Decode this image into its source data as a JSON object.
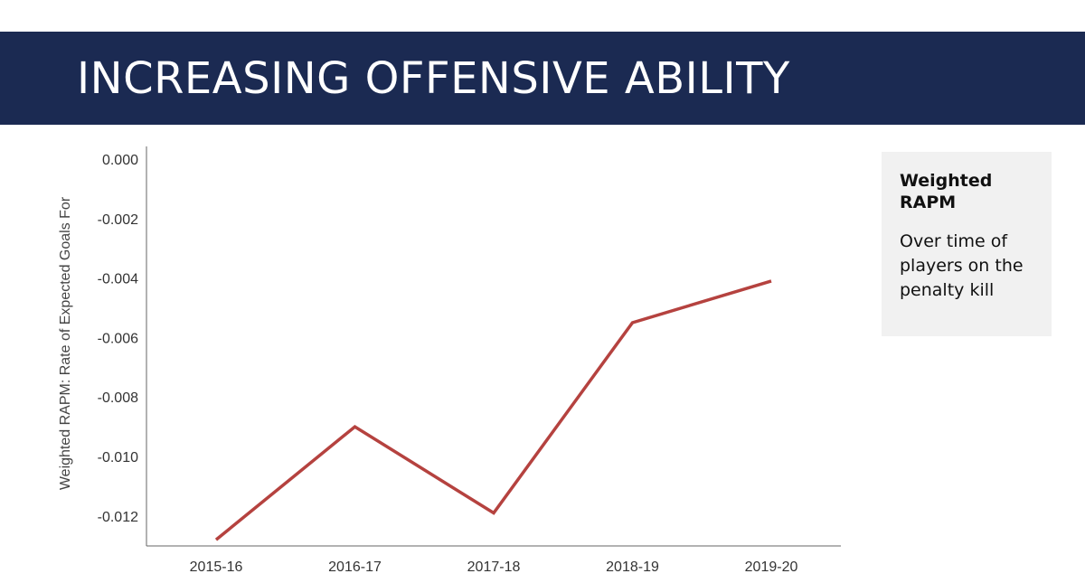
{
  "title": "INCREASING OFFENSIVE ABILITY",
  "legend": {
    "title": "Weighted RAPM",
    "description": "Over time of players on the penalty kill"
  },
  "colors": {
    "banner": "#1b2a52",
    "line": "#b5423f",
    "axis": "#666666",
    "legend_bg": "#f1f1f1"
  },
  "chart_data": {
    "type": "line",
    "categories": [
      "2015-16",
      "2016-17",
      "2017-18",
      "2018-19",
      "2019-20"
    ],
    "series": [
      {
        "name": "Weighted RAPM",
        "values": [
          -0.0128,
          -0.009,
          -0.0119,
          -0.0055,
          -0.0041
        ]
      }
    ],
    "title": "INCREASING OFFENSIVE ABILITY",
    "xlabel": "",
    "ylabel": "Weighted RAPM: Rate of Expected Goals For",
    "ylim": [
      -0.0133,
      0.0
    ],
    "yticks": [
      0.0,
      -0.002,
      -0.004,
      -0.006,
      -0.008,
      -0.01,
      -0.012
    ],
    "ytick_labels": [
      "0.000",
      "-0.002",
      "-0.004",
      "-0.006",
      "-0.008",
      "-0.010",
      "-0.012"
    ],
    "grid": false,
    "legend_position": "right"
  }
}
